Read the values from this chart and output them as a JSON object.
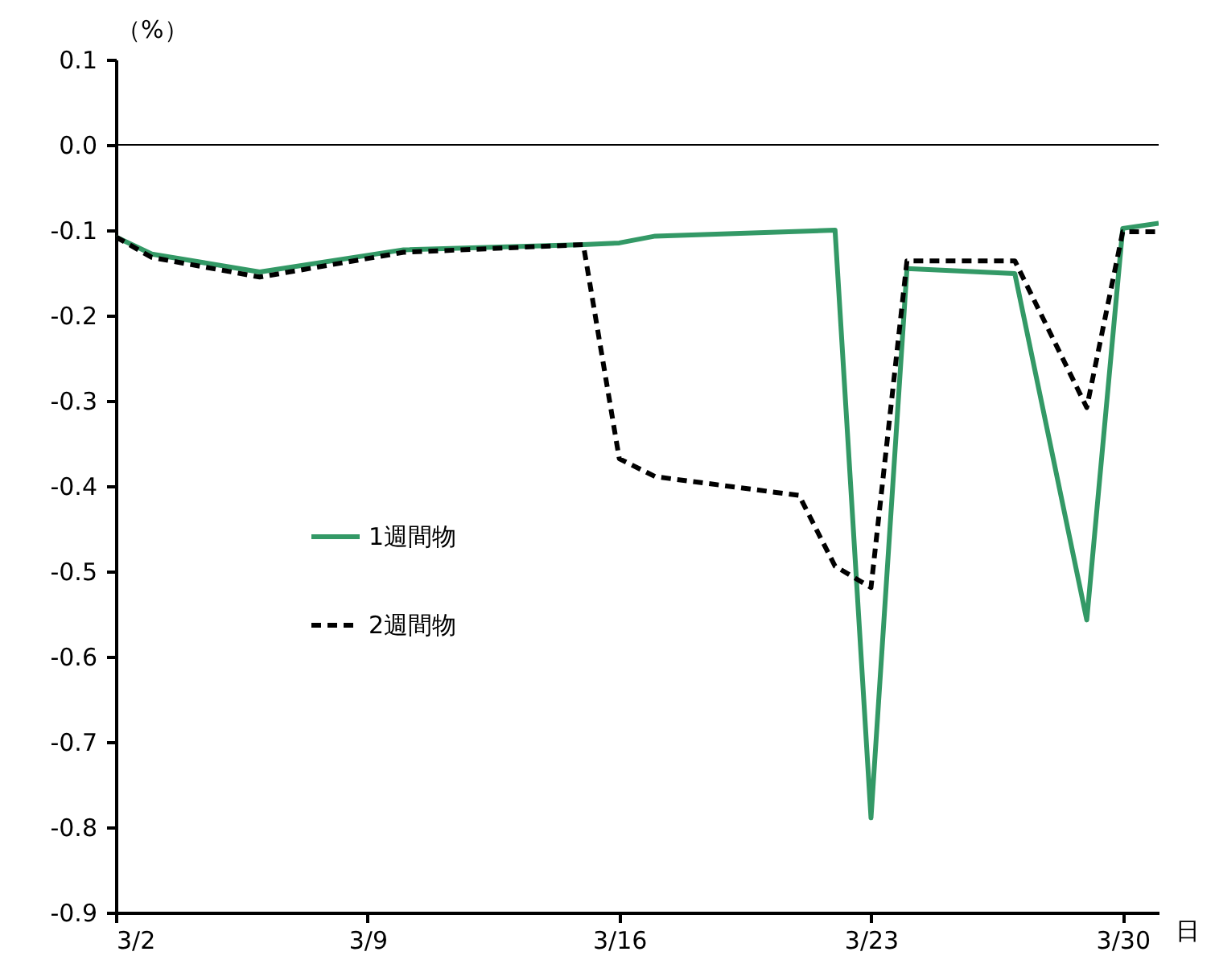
{
  "chart_data": {
    "type": "line",
    "xlabel": "日",
    "ylabel": "（%）",
    "xlim": [
      "--03-02",
      "--03-31"
    ],
    "xticks": [
      {
        "value": "--03-02",
        "label": "3/2"
      },
      {
        "value": "--03-09",
        "label": "3/9"
      },
      {
        "value": "--03-16",
        "label": "3/16"
      },
      {
        "value": "--03-23",
        "label": "3/23"
      },
      {
        "value": "--03-30",
        "label": "3/30"
      }
    ],
    "ylim": [
      -0.9,
      0.1
    ],
    "yticks": [
      -0.9,
      -0.8,
      -0.7,
      -0.6,
      -0.5,
      -0.4,
      -0.3,
      -0.2,
      -0.1,
      {
        "value": 0,
        "label": "0.0"
      },
      0.1
    ],
    "series": [
      {
        "name": "1週間物",
        "color": "#339966",
        "line_style": "solid",
        "x": [
          "--03-02",
          "--03-03",
          "--03-06",
          "--03-10",
          "--03-15",
          "--03-16",
          "--03-17",
          "--03-22",
          "--03-23",
          "--03-24",
          "--03-27",
          "--03-29",
          "--03-30",
          "--03-31"
        ],
        "values": [
          -0.108,
          -0.128,
          -0.149,
          -0.123,
          -0.117,
          -0.115,
          -0.107,
          -0.1,
          -0.789,
          -0.145,
          -0.151,
          -0.557,
          -0.098,
          -0.092
        ]
      },
      {
        "name": "2週間物",
        "color": "#000000",
        "line_style": "dashed",
        "x": [
          "--03-02",
          "--03-03",
          "--03-06",
          "--03-10",
          "--03-15",
          "--03-16",
          "--03-17",
          "--03-21",
          "--03-22",
          "--03-23",
          "--03-24",
          "--03-27",
          "--03-29",
          "--03-30",
          "--03-31"
        ],
        "values": [
          -0.108,
          -0.132,
          -0.155,
          -0.126,
          -0.117,
          -0.368,
          -0.389,
          -0.411,
          -0.494,
          -0.519,
          -0.136,
          -0.136,
          -0.308,
          -0.102,
          -0.102
        ]
      }
    ],
    "ref_lines": [
      {
        "axis": "y",
        "value": 0,
        "color": "#000000"
      }
    ],
    "legend": "left",
    "grid": false
  }
}
